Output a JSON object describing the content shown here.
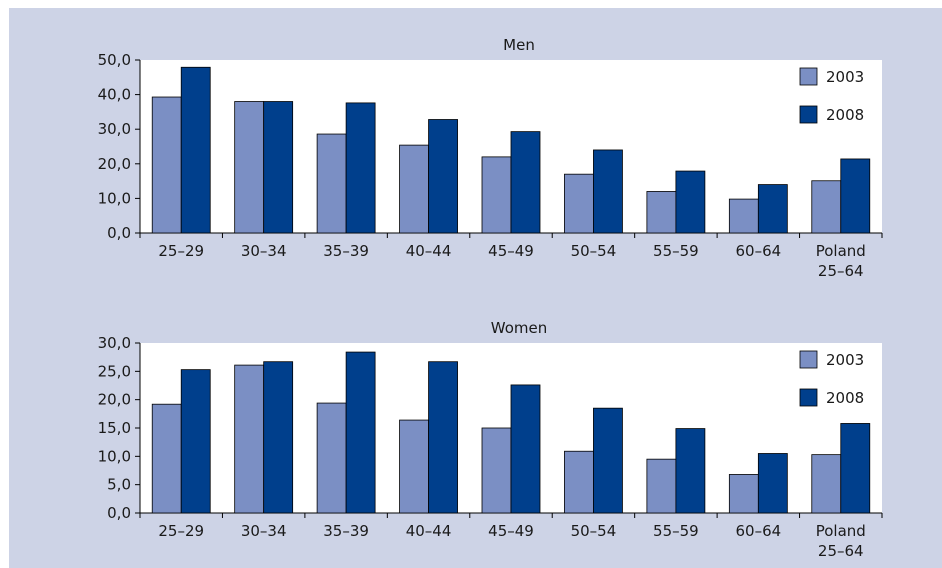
{
  "chart_data": [
    {
      "type": "bar",
      "title": "Men",
      "categories": [
        "25–29",
        "30–34",
        "35–39",
        "40–44",
        "45–49",
        "50–54",
        "55–59",
        "60–64",
        "Poland\n25–64"
      ],
      "series": [
        {
          "name": "2003",
          "values": [
            39.3,
            38.0,
            28.6,
            25.4,
            22.0,
            17.0,
            12.0,
            9.8,
            15.1
          ]
        },
        {
          "name": "2008",
          "values": [
            47.9,
            38.0,
            37.6,
            32.8,
            29.3,
            24.0,
            17.9,
            14.0,
            21.4
          ]
        }
      ],
      "yticks": [
        "0,0",
        "10,0",
        "20,0",
        "30,0",
        "40,0",
        "50,0"
      ],
      "ylim": [
        0,
        50
      ],
      "xlabel": "",
      "ylabel": "",
      "legend": "top-right",
      "grid": false,
      "colors": {
        "2003": "#7b8fc4",
        "2008": "#003f8c"
      }
    },
    {
      "type": "bar",
      "title": "Women",
      "categories": [
        "25–29",
        "30–34",
        "35–39",
        "40–44",
        "45–49",
        "50–54",
        "55–59",
        "60–64",
        "Poland\n25–64"
      ],
      "series": [
        {
          "name": "2003",
          "values": [
            19.2,
            26.1,
            19.4,
            16.4,
            15.0,
            10.9,
            9.5,
            6.8,
            10.3
          ]
        },
        {
          "name": "2008",
          "values": [
            25.3,
            26.7,
            28.4,
            26.7,
            22.6,
            18.5,
            14.9,
            10.5,
            15.8
          ]
        }
      ],
      "yticks": [
        "0,0",
        "5,0",
        "10,0",
        "15,0",
        "20,0",
        "25,0",
        "30,0"
      ],
      "ylim": [
        0,
        30
      ],
      "xlabel": "",
      "ylabel": "",
      "legend": "top-right",
      "grid": false,
      "colors": {
        "2003": "#7b8fc4",
        "2008": "#003f8c"
      }
    }
  ]
}
